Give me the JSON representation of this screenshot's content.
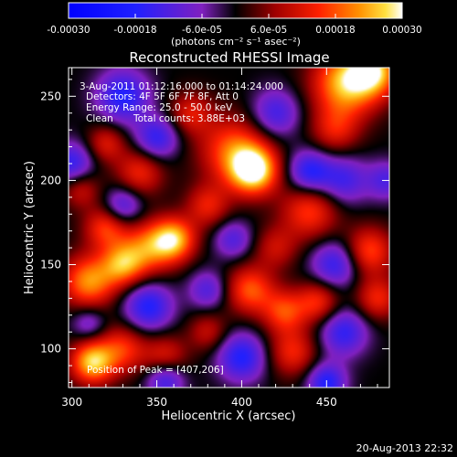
{
  "colorbar": {
    "tick_labels": [
      "-0.00030",
      "-0.00018",
      "-6.0e-05",
      "6.0e-05",
      "0.00018",
      "0.00030"
    ],
    "tick_values": [
      -0.0003,
      -0.00018,
      -6e-05,
      6e-05,
      0.00018,
      0.0003
    ],
    "range": [
      -0.0003,
      0.0003
    ],
    "units_label": "(photons cm⁻² s⁻¹ asec⁻²)"
  },
  "chart_data": {
    "type": "heatmap",
    "title": "Reconstructed RHESSI Image",
    "xlabel": "Heliocentric X (arcsec)",
    "ylabel": "Heliocentric Y (arcsec)",
    "xlim": [
      298,
      487
    ],
    "ylim": [
      77,
      267
    ],
    "x_tick_labels": [
      "300",
      "350",
      "400",
      "450"
    ],
    "x_ticks": [
      300,
      350,
      400,
      450
    ],
    "y_tick_labels": [
      "100",
      "150",
      "200",
      "250"
    ],
    "y_ticks": [
      100,
      150,
      200,
      250
    ],
    "peak": [
      407,
      206
    ],
    "blobs": [
      {
        "x": 407,
        "y": 206,
        "amp": 0.0003,
        "s": 10
      },
      {
        "x": 395,
        "y": 218,
        "amp": 0.00018,
        "s": 14
      },
      {
        "x": 440,
        "y": 182,
        "amp": 0.00016,
        "s": 12
      },
      {
        "x": 462,
        "y": 258,
        "amp": 0.00026,
        "s": 14
      },
      {
        "x": 478,
        "y": 265,
        "amp": 0.00022,
        "s": 10
      },
      {
        "x": 360,
        "y": 165,
        "amp": 0.00024,
        "s": 9
      },
      {
        "x": 345,
        "y": 160,
        "amp": 0.00018,
        "s": 11
      },
      {
        "x": 330,
        "y": 150,
        "amp": 0.0002,
        "s": 9
      },
      {
        "x": 310,
        "y": 140,
        "amp": 0.00022,
        "s": 11
      },
      {
        "x": 320,
        "y": 172,
        "amp": 0.00016,
        "s": 9
      },
      {
        "x": 405,
        "y": 135,
        "amp": 0.00018,
        "s": 10
      },
      {
        "x": 425,
        "y": 122,
        "amp": 0.00016,
        "s": 9
      },
      {
        "x": 445,
        "y": 128,
        "amp": 0.00015,
        "s": 9
      },
      {
        "x": 475,
        "y": 158,
        "amp": 0.00017,
        "s": 10
      },
      {
        "x": 480,
        "y": 130,
        "amp": 0.00014,
        "s": 9
      },
      {
        "x": 312,
        "y": 92,
        "amp": 0.00026,
        "s": 9
      },
      {
        "x": 330,
        "y": 100,
        "amp": 0.00015,
        "s": 10
      },
      {
        "x": 355,
        "y": 95,
        "amp": 0.00013,
        "s": 9
      },
      {
        "x": 430,
        "y": 98,
        "amp": 0.00014,
        "s": 10
      },
      {
        "x": 340,
        "y": 205,
        "amp": 0.00014,
        "s": 10
      },
      {
        "x": 320,
        "y": 222,
        "amp": 0.00012,
        "s": 8
      },
      {
        "x": 370,
        "y": 240,
        "amp": 0.00012,
        "s": 9
      },
      {
        "x": 455,
        "y": 230,
        "amp": 0.00012,
        "s": 10
      },
      {
        "x": 380,
        "y": 185,
        "amp": 0.00013,
        "s": 9
      },
      {
        "x": 420,
        "y": 160,
        "amp": 0.0001,
        "s": 9
      },
      {
        "x": 380,
        "y": 110,
        "amp": 0.0001,
        "s": 8
      },
      {
        "x": 305,
        "y": 195,
        "amp": 0.00011,
        "s": 8
      },
      {
        "x": 330,
        "y": 250,
        "amp": -0.00018,
        "s": 11
      },
      {
        "x": 350,
        "y": 225,
        "amp": -0.00016,
        "s": 9
      },
      {
        "x": 420,
        "y": 240,
        "amp": -0.00014,
        "s": 10
      },
      {
        "x": 440,
        "y": 205,
        "amp": -0.00018,
        "s": 9
      },
      {
        "x": 460,
        "y": 200,
        "amp": -0.00014,
        "s": 10
      },
      {
        "x": 300,
        "y": 210,
        "amp": -0.00016,
        "s": 9
      },
      {
        "x": 330,
        "y": 185,
        "amp": -0.00014,
        "s": 8
      },
      {
        "x": 395,
        "y": 165,
        "amp": -0.00012,
        "s": 8
      },
      {
        "x": 455,
        "y": 150,
        "amp": -0.00016,
        "s": 10
      },
      {
        "x": 345,
        "y": 125,
        "amp": -0.00018,
        "s": 10
      },
      {
        "x": 380,
        "y": 135,
        "amp": -0.00012,
        "s": 8
      },
      {
        "x": 460,
        "y": 110,
        "amp": -0.00016,
        "s": 10
      },
      {
        "x": 400,
        "y": 95,
        "amp": -0.00018,
        "s": 10
      },
      {
        "x": 355,
        "y": 82,
        "amp": -0.00016,
        "s": 8
      },
      {
        "x": 450,
        "y": 80,
        "amp": -0.00018,
        "s": 8
      },
      {
        "x": 310,
        "y": 115,
        "amp": -0.0001,
        "s": 7
      },
      {
        "x": 485,
        "y": 200,
        "amp": -0.00012,
        "s": 8
      }
    ]
  },
  "annotations": {
    "time_range": "3-Aug-2011 01:12:16.000 to 01:14:24.000",
    "detectors": "Detectors: 4F 5F 6F 7F 8F, Att 0",
    "energy": "Energy Range: 25.0 - 50.0 keV",
    "method": "Clean",
    "counts": "Total counts: 3.88E+03",
    "peak": "Position of Peak = [407,206]"
  },
  "footer": {
    "date": "20-Aug-2013 22:32"
  }
}
